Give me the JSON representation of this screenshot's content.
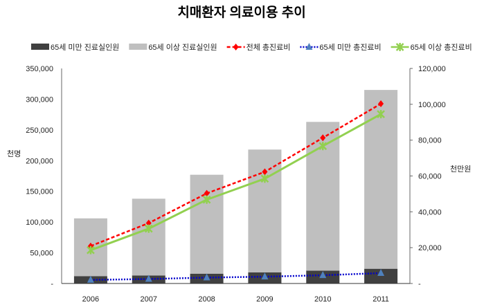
{
  "chart_data": {
    "type": "bar+line",
    "title": "치매환자 의료이용 추이",
    "ylabel": "천명",
    "y2label": "천만원",
    "categories": [
      "2006",
      "2007",
      "2008",
      "2009",
      "2010",
      "2011"
    ],
    "ylim": [
      0,
      350000
    ],
    "y2lim": [
      0,
      120000
    ],
    "yticks": [
      "-",
      "50,000",
      "100,000",
      "150,000",
      "200,000",
      "250,000",
      "300,000",
      "350,000"
    ],
    "y2ticks": [
      "-",
      "20,000",
      "40,000",
      "60,000",
      "80,000",
      "100,000",
      "120,000"
    ],
    "series": [
      {
        "name": "65세 미만 진료실인원",
        "kind": "bar",
        "axis": "left",
        "color": "#404040",
        "values": [
          12000,
          13000,
          16000,
          18000,
          21000,
          24000
        ]
      },
      {
        "name": "65세 이상 진료실인원",
        "kind": "bar",
        "axis": "left",
        "color": "#bfbfbf",
        "values": [
          94000,
          125000,
          161000,
          200000,
          242000,
          291000
        ]
      },
      {
        "name": "전체 총진료비",
        "kind": "line",
        "axis": "right",
        "color": "#ff0000",
        "style": "dashed",
        "marker": "diamond",
        "values": [
          20900,
          33700,
          50300,
          62300,
          81300,
          100300
        ]
      },
      {
        "name": "65세 미만 총진료비",
        "kind": "line",
        "axis": "right",
        "color": "#0000cc",
        "style": "dotted",
        "marker": "triangle",
        "values": [
          2000,
          2500,
          3300,
          3800,
          4600,
          5800
        ]
      },
      {
        "name": "65세 이상 총진료비",
        "kind": "line",
        "axis": "right",
        "color": "#92d050",
        "style": "solid",
        "marker": "star",
        "values": [
          18600,
          30600,
          46800,
          58500,
          76700,
          94500
        ]
      }
    ],
    "stacked_bars": true,
    "legend": "top",
    "grid": false
  }
}
